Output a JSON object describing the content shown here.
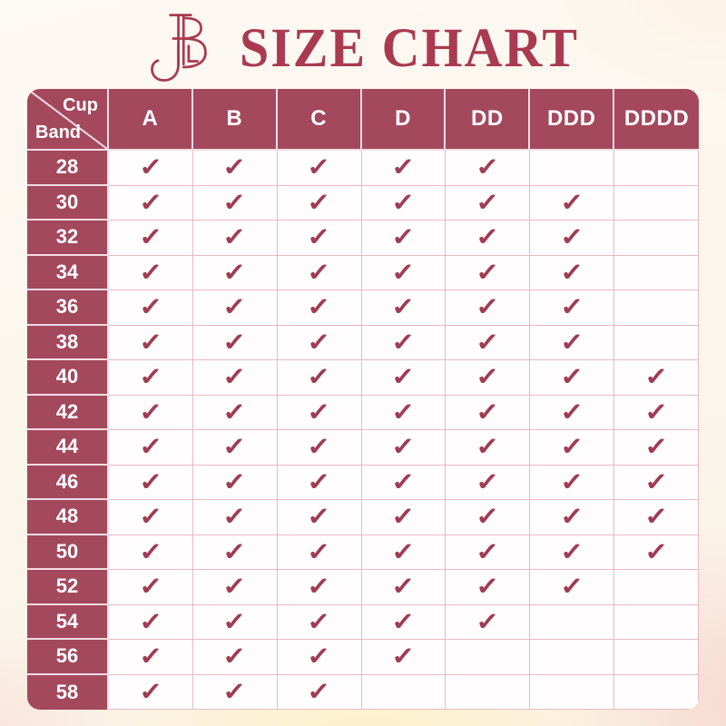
{
  "page": {
    "title": "SIZE CHART",
    "brand_logo": "EBL-monogram"
  },
  "colors": {
    "maroon": "#a4485d",
    "check": "#a03c53",
    "grid_pink": "#e9b9c3",
    "title_text": "#a93a52",
    "cell_bg": "#fffdfd",
    "page_bg_cream": "#fcf6ee",
    "page_bg_peach": "#f7d9d0",
    "page_bg_yellow_glow": "#fdf0c9"
  },
  "icons": {
    "check_glyph": "✓"
  },
  "chart_data": {
    "type": "table",
    "title": "SIZE CHART",
    "corner": {
      "top_label": "Cup",
      "bottom_label": "Band"
    },
    "columns": [
      "A",
      "B",
      "C",
      "D",
      "DD",
      "DDD",
      "DDDD"
    ],
    "rows": [
      {
        "band": "28",
        "checks": [
          1,
          1,
          1,
          1,
          1,
          0,
          0
        ]
      },
      {
        "band": "30",
        "checks": [
          1,
          1,
          1,
          1,
          1,
          1,
          0
        ]
      },
      {
        "band": "32",
        "checks": [
          1,
          1,
          1,
          1,
          1,
          1,
          0
        ]
      },
      {
        "band": "34",
        "checks": [
          1,
          1,
          1,
          1,
          1,
          1,
          0
        ]
      },
      {
        "band": "36",
        "checks": [
          1,
          1,
          1,
          1,
          1,
          1,
          0
        ]
      },
      {
        "band": "38",
        "checks": [
          1,
          1,
          1,
          1,
          1,
          1,
          0
        ]
      },
      {
        "band": "40",
        "checks": [
          1,
          1,
          1,
          1,
          1,
          1,
          1
        ]
      },
      {
        "band": "42",
        "checks": [
          1,
          1,
          1,
          1,
          1,
          1,
          1
        ]
      },
      {
        "band": "44",
        "checks": [
          1,
          1,
          1,
          1,
          1,
          1,
          1
        ]
      },
      {
        "band": "46",
        "checks": [
          1,
          1,
          1,
          1,
          1,
          1,
          1
        ]
      },
      {
        "band": "48",
        "checks": [
          1,
          1,
          1,
          1,
          1,
          1,
          1
        ]
      },
      {
        "band": "50",
        "checks": [
          1,
          1,
          1,
          1,
          1,
          1,
          1
        ]
      },
      {
        "band": "52",
        "checks": [
          1,
          1,
          1,
          1,
          1,
          1,
          0
        ]
      },
      {
        "band": "54",
        "checks": [
          1,
          1,
          1,
          1,
          1,
          0,
          0
        ]
      },
      {
        "band": "56",
        "checks": [
          1,
          1,
          1,
          1,
          0,
          0,
          0
        ]
      },
      {
        "band": "58",
        "checks": [
          1,
          1,
          1,
          0,
          0,
          0,
          0
        ]
      }
    ]
  }
}
